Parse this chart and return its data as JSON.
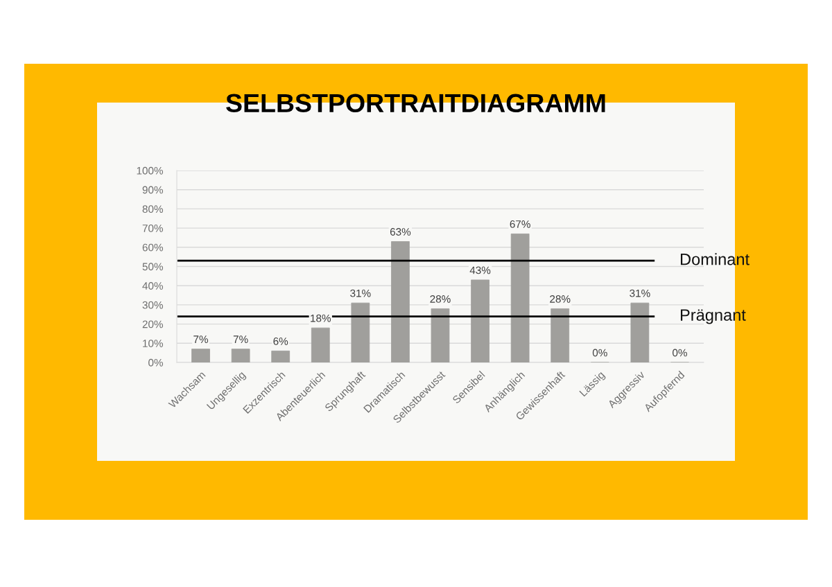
{
  "chart_data": {
    "type": "bar",
    "title": "SELBSTPORTRAITDIAGRAMM",
    "categories": [
      "Wachsam",
      "Ungesellig",
      "Exzentrisch",
      "Abenteuerlich",
      "Sprunghaft",
      "Dramatisch",
      "Selbstbewusst",
      "Sensibel",
      "Anhänglich",
      "Gewissenhaft",
      "Lässig",
      "Aggressiv",
      "Aufopfernd"
    ],
    "values": [
      7,
      7,
      6,
      18,
      31,
      63,
      28,
      43,
      67,
      28,
      0,
      31,
      0
    ],
    "value_labels": [
      "7%",
      "7%",
      "6%",
      "18%",
      "31%",
      "63%",
      "28%",
      "43%",
      "67%",
      "28%",
      "0%",
      "31%",
      "0%"
    ],
    "color": "#a09f9c",
    "ylim": [
      0,
      100
    ],
    "yticks": [
      {
        "value": 0,
        "label": "0%"
      },
      {
        "value": 10,
        "label": "10%"
      },
      {
        "value": 20,
        "label": "20%"
      },
      {
        "value": 30,
        "label": "30%"
      },
      {
        "value": 40,
        "label": "40%"
      },
      {
        "value": 50,
        "label": "50%"
      },
      {
        "value": 60,
        "label": "60%"
      },
      {
        "value": 70,
        "label": "70%"
      },
      {
        "value": 80,
        "label": "80%"
      },
      {
        "value": 90,
        "label": "90%"
      },
      {
        "value": 100,
        "label": "100%"
      }
    ],
    "grid": "y",
    "ref_lines": [
      {
        "axis": "y",
        "value": 53,
        "label": "Dominant",
        "color": "#000000"
      },
      {
        "axis": "y",
        "value": 24,
        "label": "Prägnant",
        "color": "#000000"
      }
    ]
  }
}
